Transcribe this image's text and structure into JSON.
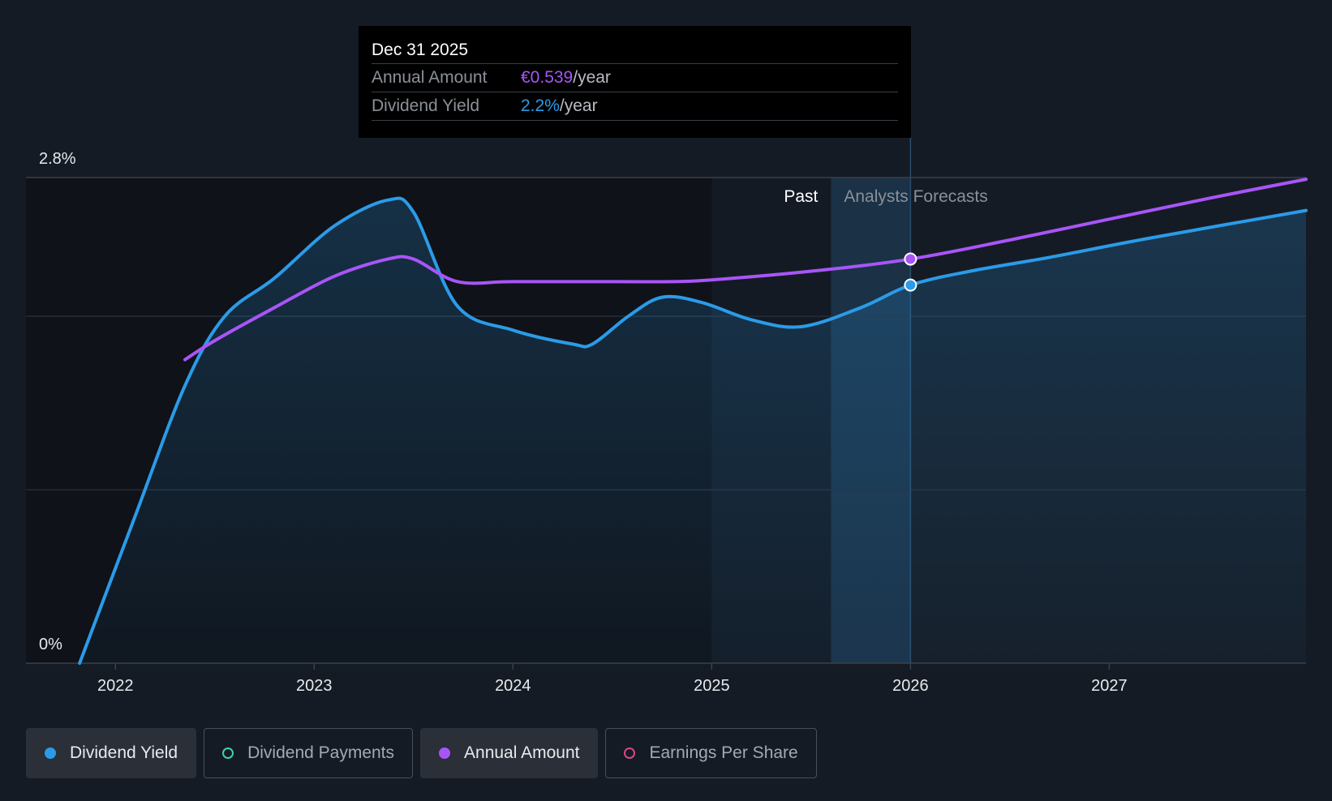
{
  "tooltip": {
    "date": "Dec 31 2025",
    "rows": [
      {
        "label": "Annual Amount",
        "value": "€0.539",
        "unit": "/year"
      },
      {
        "label": "Dividend Yield",
        "value": "2.2%",
        "unit": "/year"
      }
    ]
  },
  "legend": [
    {
      "label": "Dividend Yield",
      "active": true,
      "filled": true,
      "color": "#2b9be8"
    },
    {
      "label": "Dividend Payments",
      "active": false,
      "filled": false,
      "color": "#3ecfb4"
    },
    {
      "label": "Annual Amount",
      "active": true,
      "filled": true,
      "color": "#a855f7"
    },
    {
      "label": "Earnings Per Share",
      "active": false,
      "filled": false,
      "color": "#d9487f"
    }
  ],
  "chart_data": {
    "type": "line",
    "x_axis": {
      "ticks": [
        "2022",
        "2023",
        "2024",
        "2025",
        "2026",
        "2027"
      ],
      "range": [
        2021.55,
        2027.99
      ]
    },
    "y_axis": {
      "ticks": [
        "0%",
        "2.8%"
      ],
      "range": [
        0,
        2.8
      ]
    },
    "region_labels": {
      "past": "Past",
      "forecast": "Analysts Forecasts"
    },
    "highlight_x": 2026.0,
    "series": [
      {
        "name": "Dividend Yield",
        "color": "#2b9be8",
        "filled": true,
        "x": [
          2021.82,
          2022.1,
          2022.35,
          2022.55,
          2022.8,
          2023.1,
          2023.37,
          2023.5,
          2023.72,
          2024.0,
          2024.3,
          2024.4,
          2024.58,
          2024.75,
          2024.95,
          2025.2,
          2025.45,
          2025.75,
          2026.0,
          2026.3,
          2026.7,
          2027.2,
          2027.99
        ],
        "values": [
          0.0,
          0.85,
          1.6,
          2.0,
          2.22,
          2.52,
          2.67,
          2.6,
          2.06,
          1.92,
          1.84,
          1.84,
          2.0,
          2.11,
          2.08,
          1.98,
          1.94,
          2.05,
          2.18,
          2.26,
          2.34,
          2.45,
          2.61
        ]
      },
      {
        "name": "Annual Amount",
        "color": "#a855f7",
        "filled": false,
        "x": [
          2022.35,
          2022.5,
          2022.8,
          2023.1,
          2023.37,
          2023.5,
          2023.72,
          2024.0,
          2024.5,
          2024.8,
          2025.0,
          2025.5,
          2026.0,
          2026.5,
          2027.0,
          2027.5,
          2027.99
        ],
        "values": [
          1.75,
          1.86,
          2.05,
          2.23,
          2.33,
          2.33,
          2.2,
          2.2,
          2.2,
          2.2,
          2.21,
          2.26,
          2.33,
          2.44,
          2.56,
          2.68,
          2.79
        ]
      }
    ]
  }
}
